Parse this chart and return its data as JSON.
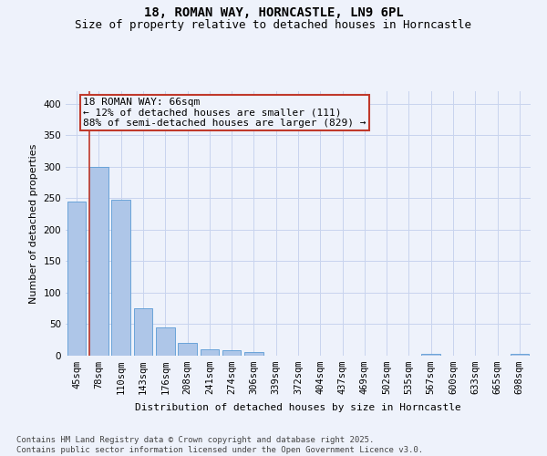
{
  "title_line1": "18, ROMAN WAY, HORNCASTLE, LN9 6PL",
  "title_line2": "Size of property relative to detached houses in Horncastle",
  "xlabel": "Distribution of detached houses by size in Horncastle",
  "ylabel": "Number of detached properties",
  "categories": [
    "45sqm",
    "78sqm",
    "110sqm",
    "143sqm",
    "176sqm",
    "208sqm",
    "241sqm",
    "274sqm",
    "306sqm",
    "339sqm",
    "372sqm",
    "404sqm",
    "437sqm",
    "469sqm",
    "502sqm",
    "535sqm",
    "567sqm",
    "600sqm",
    "633sqm",
    "665sqm",
    "698sqm"
  ],
  "values": [
    245,
    300,
    248,
    75,
    45,
    21,
    10,
    8,
    6,
    0,
    0,
    0,
    0,
    0,
    0,
    0,
    3,
    0,
    0,
    0,
    3
  ],
  "bar_color": "#aec6e8",
  "bar_edge_color": "#5b9bd5",
  "vline_color": "#c0392b",
  "vline_x_index": 1,
  "annotation_text": "18 ROMAN WAY: 66sqm\n← 12% of detached houses are smaller (111)\n88% of semi-detached houses are larger (829) →",
  "annotation_box_color": "#c0392b",
  "ylim": [
    0,
    420
  ],
  "yticks": [
    0,
    50,
    100,
    150,
    200,
    250,
    300,
    350,
    400
  ],
  "footnote": "Contains HM Land Registry data © Crown copyright and database right 2025.\nContains public sector information licensed under the Open Government Licence v3.0.",
  "background_color": "#eef2fb",
  "grid_color": "#c8d4ee",
  "title_fontsize": 10,
  "subtitle_fontsize": 9,
  "axis_label_fontsize": 8,
  "tick_fontsize": 7.5,
  "annotation_fontsize": 8,
  "footnote_fontsize": 6.5
}
